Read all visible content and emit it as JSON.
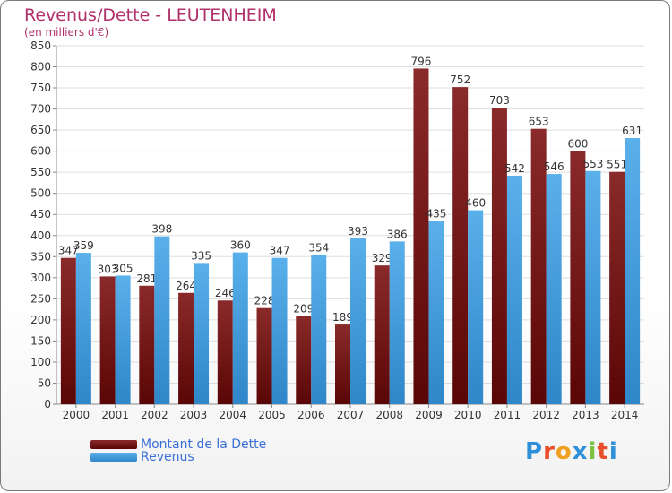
{
  "colors": {
    "title": "#b0306a",
    "debt_bar": "#7a1c1c",
    "revenue_bar": "#4aa3e0",
    "legend_text": "#3a6fd8"
  },
  "logo": {
    "letters": [
      "P",
      "r",
      "o",
      "x",
      "i",
      "t",
      "i"
    ],
    "colors": [
      "#2f8fd8",
      "#e84f2a",
      "#f0a020",
      "#2f8fd8",
      "#7cc242",
      "#e84f2a",
      "#2f8fd8"
    ]
  },
  "chart_data": {
    "type": "bar",
    "title": "Revenus/Dette - LEUTENHEIM",
    "subtitle": "(en milliers d'€)",
    "xlabel": "",
    "ylabel": "",
    "ylim": [
      0,
      850
    ],
    "yticks": [
      0,
      50,
      100,
      150,
      200,
      250,
      300,
      350,
      400,
      450,
      500,
      550,
      600,
      650,
      700,
      750,
      800,
      850
    ],
    "grid": true,
    "legend_position": "bottom-left",
    "categories": [
      "2000",
      "2001",
      "2002",
      "2003",
      "2004",
      "2005",
      "2006",
      "2007",
      "2008",
      "2009",
      "2010",
      "2011",
      "2012",
      "2013",
      "2014"
    ],
    "series": [
      {
        "name": "Montant de la Dette",
        "values": [
          347,
          303,
          281,
          264,
          246,
          228,
          209,
          189,
          329,
          796,
          752,
          703,
          653,
          600,
          551
        ]
      },
      {
        "name": "Revenus",
        "values": [
          359,
          305,
          398,
          335,
          360,
          347,
          354,
          393,
          386,
          435,
          460,
          542,
          546,
          553,
          631
        ]
      }
    ]
  }
}
